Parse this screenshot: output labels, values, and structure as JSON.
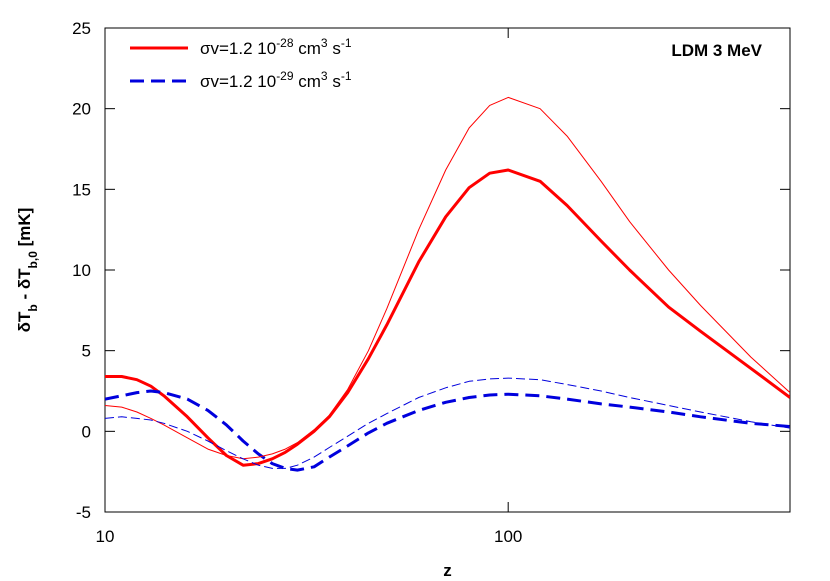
{
  "chart_data": {
    "type": "line",
    "annotation": "LDM 3 MeV",
    "xlabel": "z",
    "ylabel": [
      "δT",
      "b",
      " - δT",
      "b,0",
      " [mK]"
    ],
    "x": [
      10,
      11,
      12,
      13,
      14,
      16,
      18,
      20,
      22,
      24,
      26,
      28,
      30,
      33,
      36,
      40,
      45,
      50,
      60,
      70,
      80,
      90,
      100,
      120,
      140,
      170,
      200,
      250,
      300,
      400,
      500
    ],
    "xscale": "log",
    "xlim": [
      10,
      500
    ],
    "xticks": [
      10,
      100
    ],
    "ylim": [
      -5,
      25
    ],
    "yticks": [
      -5,
      0,
      5,
      10,
      15,
      20,
      25
    ],
    "legend": "upper left",
    "series": [
      {
        "name": [
          "σv=1.2 10",
          "-28",
          " cm",
          "3",
          " s",
          "-1"
        ],
        "color": "#ff0000",
        "width": 3,
        "dashed": false,
        "values": [
          3.4,
          3.4,
          3.2,
          2.8,
          2.2,
          0.9,
          -0.4,
          -1.5,
          -2.1,
          -2.0,
          -1.7,
          -1.3,
          -0.8,
          0.0,
          0.9,
          2.4,
          4.5,
          6.6,
          10.5,
          13.3,
          15.1,
          16.0,
          16.2,
          15.5,
          14.0,
          11.8,
          10.0,
          7.7,
          6.2,
          3.9,
          2.1
        ]
      },
      {
        "name": [
          "σv=1.2 10",
          "-29",
          " cm",
          "3",
          " s",
          "-1"
        ],
        "color": "#0000dd",
        "width": 3,
        "dashed": true,
        "values": [
          2.0,
          2.2,
          2.4,
          2.5,
          2.4,
          2.0,
          1.3,
          0.4,
          -0.6,
          -1.4,
          -2.0,
          -2.3,
          -2.4,
          -2.2,
          -1.6,
          -0.9,
          -0.1,
          0.5,
          1.3,
          1.8,
          2.1,
          2.25,
          2.3,
          2.2,
          2.0,
          1.7,
          1.5,
          1.2,
          0.9,
          0.5,
          0.3
        ]
      },
      {
        "color": "#ff0000",
        "width": 1,
        "dashed": false,
        "values": [
          1.6,
          1.5,
          1.2,
          0.8,
          0.4,
          -0.4,
          -1.1,
          -1.5,
          -1.7,
          -1.6,
          -1.4,
          -1.1,
          -0.7,
          0.1,
          1.0,
          2.6,
          5.0,
          7.6,
          12.5,
          16.2,
          18.8,
          20.2,
          20.7,
          20.0,
          18.3,
          15.5,
          13.0,
          10.0,
          7.8,
          4.6,
          2.4
        ]
      },
      {
        "color": "#0000dd",
        "width": 1,
        "dashed": true,
        "values": [
          0.8,
          0.9,
          0.8,
          0.7,
          0.5,
          0.0,
          -0.6,
          -1.2,
          -1.7,
          -2.1,
          -2.3,
          -2.3,
          -2.1,
          -1.6,
          -1.0,
          -0.3,
          0.5,
          1.1,
          2.1,
          2.7,
          3.1,
          3.25,
          3.3,
          3.2,
          2.9,
          2.5,
          2.1,
          1.6,
          1.2,
          0.6,
          0.2
        ]
      }
    ]
  }
}
